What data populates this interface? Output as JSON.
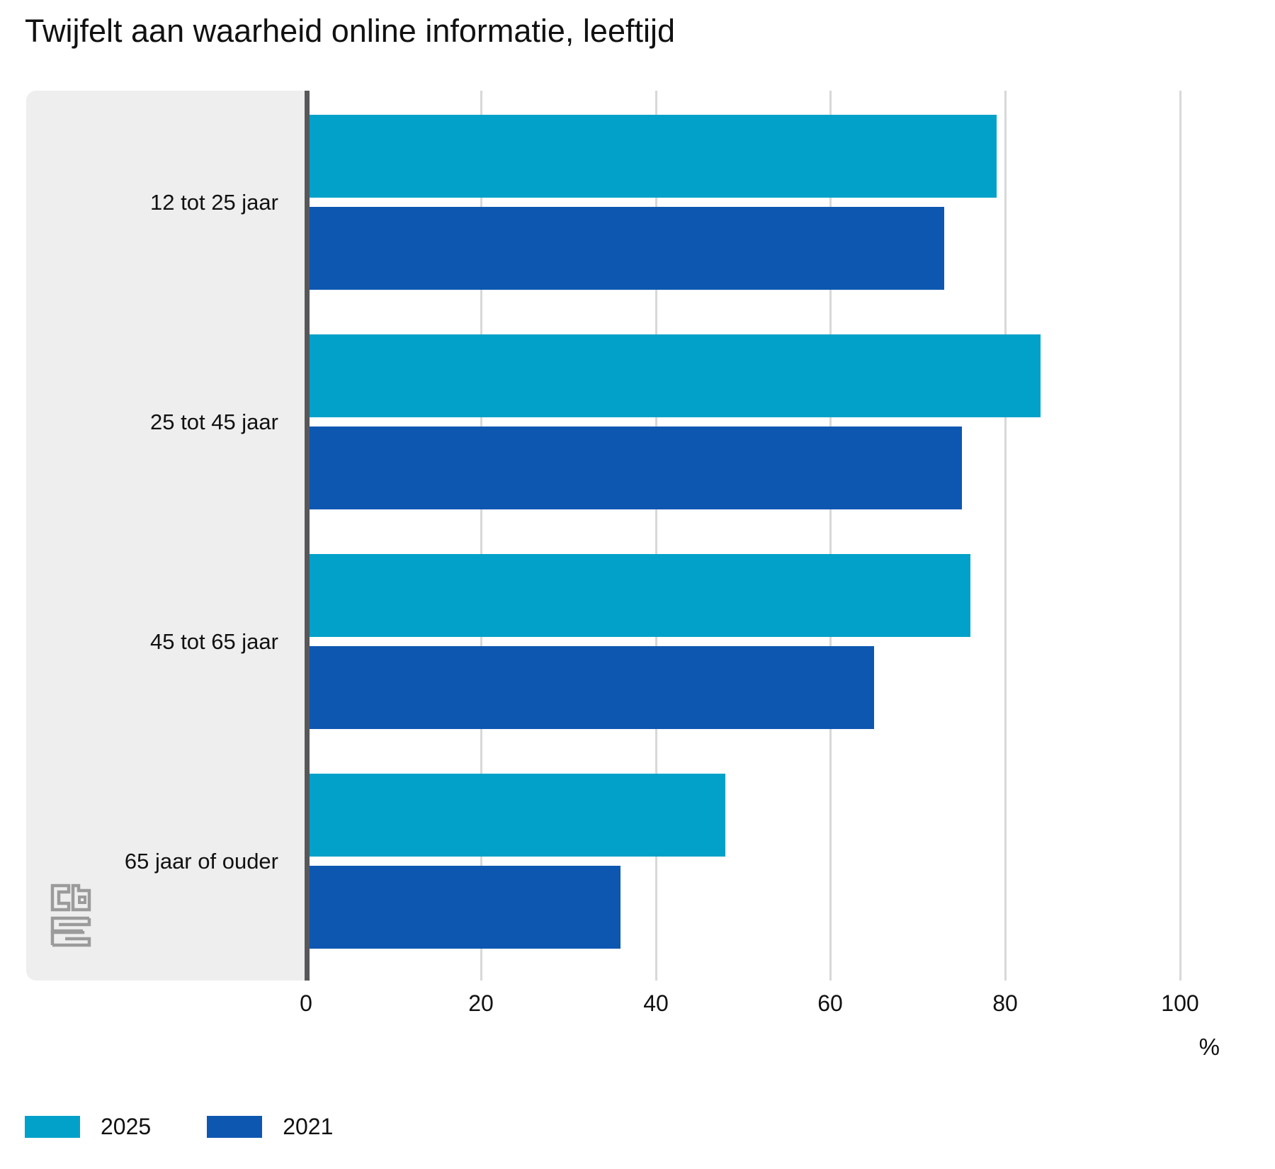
{
  "title": "Twijfelt aan waarheid online informatie, leeftijd",
  "chart_data": {
    "type": "bar",
    "orientation": "horizontal",
    "title": "Twijfelt aan waarheid online informatie, leeftijd",
    "categories": [
      "12 tot 25 jaar",
      "25 tot 45 jaar",
      "45 tot 65 jaar",
      "65 jaar of ouder"
    ],
    "series": [
      {
        "name": "2025",
        "color": "#02a1c9",
        "values": [
          79,
          84,
          76,
          48
        ]
      },
      {
        "name": "2021",
        "color": "#0d57b1",
        "values": [
          73,
          75,
          65,
          36
        ]
      }
    ],
    "xlabel": "%",
    "xlim": [
      0,
      100
    ],
    "xticks": [
      0,
      20,
      40,
      60,
      80,
      100
    ],
    "grid": true,
    "legend_position": "bottom-left"
  },
  "legend": {
    "items": [
      {
        "label": "2025",
        "color": "#02a1c9"
      },
      {
        "label": "2021",
        "color": "#0d57b1"
      }
    ]
  },
  "logo": {
    "name": "cbs-logo",
    "color": "#9b9b9b"
  },
  "colors": {
    "panel": "#eeeeee",
    "axis_line": "#58585a",
    "gridline": "#d8d8d8",
    "text": "#111111",
    "background": "#ffffff"
  }
}
